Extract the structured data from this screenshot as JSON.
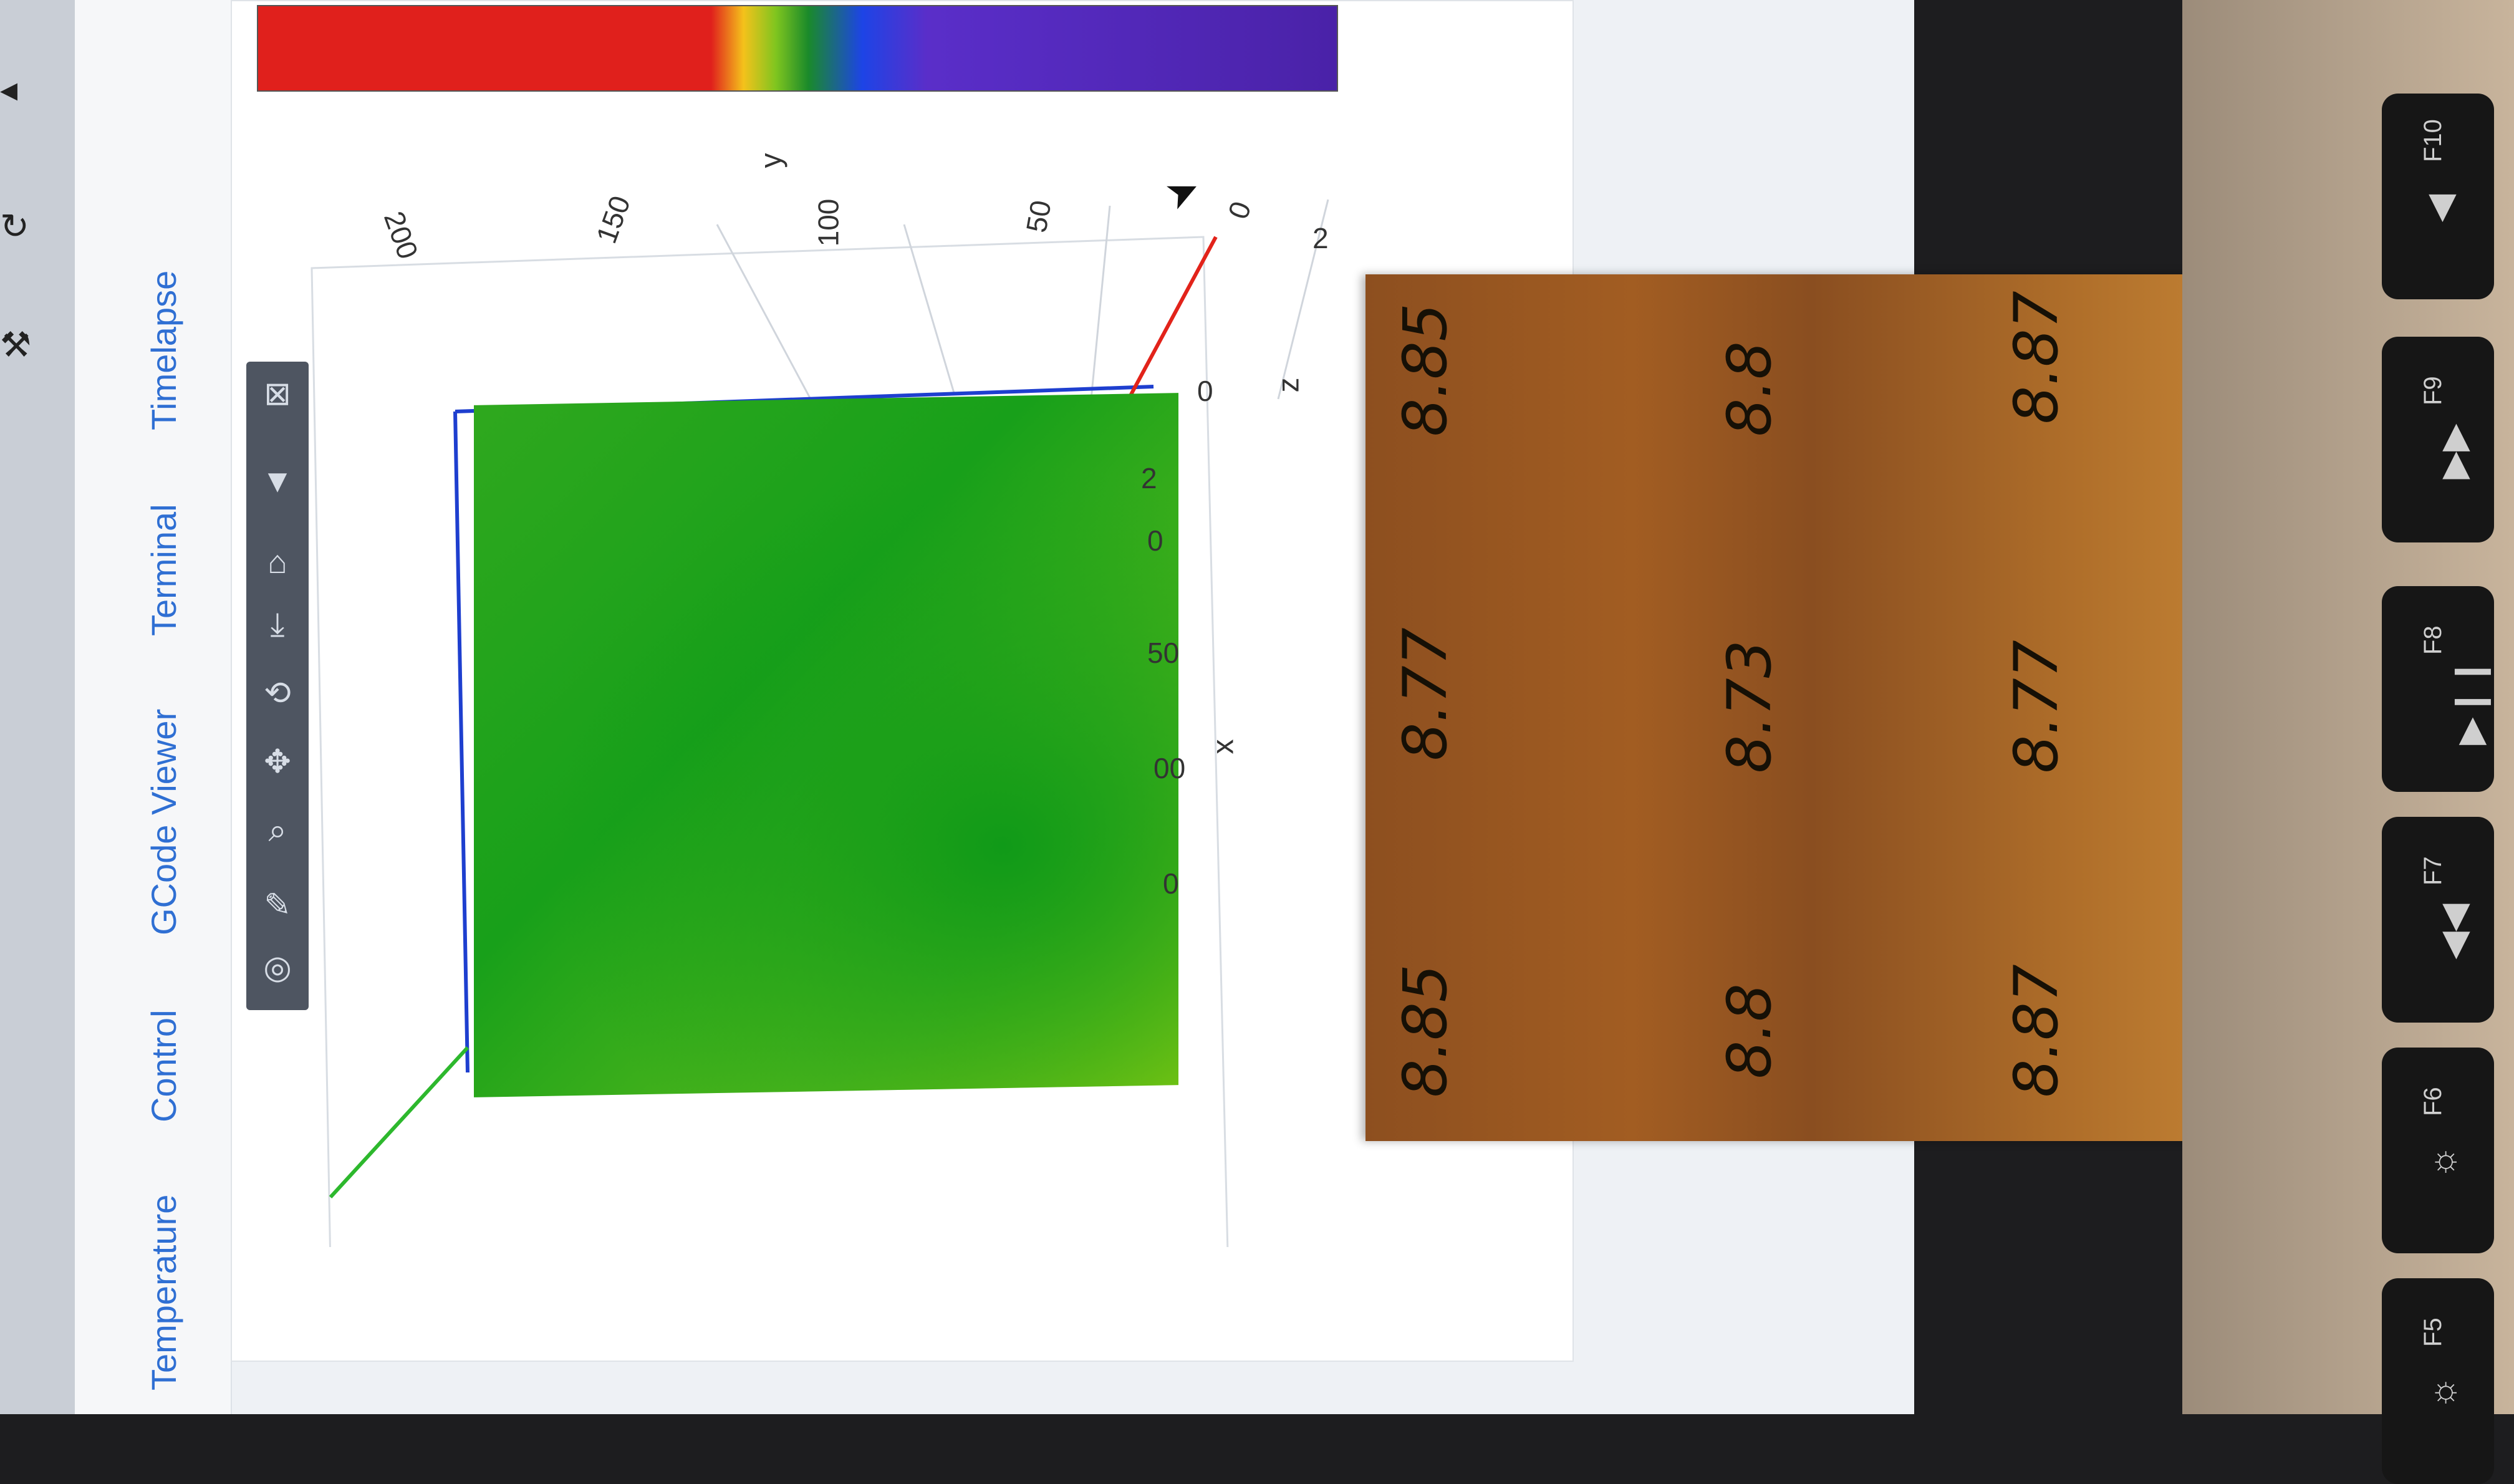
{
  "tabs": [
    {
      "label": "Temperature"
    },
    {
      "label": "Control"
    },
    {
      "label": "GCode Viewer"
    },
    {
      "label": "Terminal"
    },
    {
      "label": "Timelapse"
    }
  ],
  "plot": {
    "axis_labels": {
      "x": "x",
      "y": "y",
      "z": "z"
    },
    "y_ticks": [
      "200",
      "150",
      "100",
      "50",
      "0"
    ],
    "x_ticks": [
      "2",
      "0",
      "50",
      "00",
      "0"
    ],
    "z_ticks": [
      "0",
      "2"
    ],
    "colorbar_colors": [
      "#e0201c",
      "#f4c21b",
      "#1a8a2a",
      "#1d44e6",
      "#4a22a8"
    ]
  },
  "modebar_icons": [
    "camera-icon",
    "pencil-icon",
    "zoom-icon",
    "pan-icon",
    "orbit-icon",
    "turntable-icon",
    "reset-camera-icon",
    "hover-icon",
    "plotly-logo-icon"
  ],
  "note": {
    "rows": [
      [
        "8.85",
        "8.77",
        "8.85"
      ],
      [
        "8.8",
        "8.73",
        "8.8"
      ],
      [
        "8.87",
        "8.77",
        "8.87"
      ]
    ]
  },
  "keyboard": {
    "keys": [
      {
        "label": "F5",
        "symbol": "☼"
      },
      {
        "label": "F6",
        "symbol": "☼"
      },
      {
        "label": "F7",
        "symbol": "◀◀"
      },
      {
        "label": "F8",
        "symbol": "▶❙❙"
      },
      {
        "label": "F9",
        "symbol": "▶▶"
      },
      {
        "label": "F10",
        "symbol": "◀"
      }
    ]
  }
}
